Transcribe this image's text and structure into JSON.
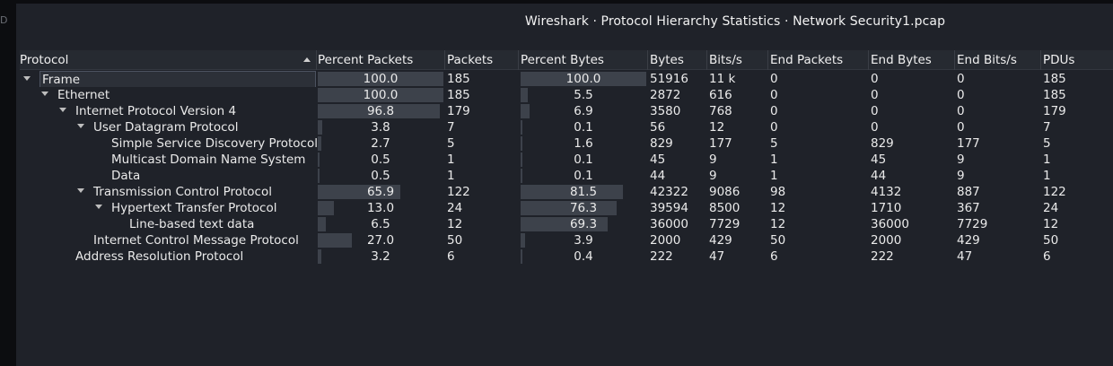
{
  "window": {
    "title": "Wireshark · Protocol Hierarchy Statistics · Network Security1.pcap",
    "desktop_letter": "D"
  },
  "columns": [
    "Protocol",
    "Percent Packets",
    "Packets",
    "Percent Bytes",
    "Bytes",
    "Bits/s",
    "End Packets",
    "End Bytes",
    "End Bits/s",
    "PDUs"
  ],
  "rows": [
    {
      "protocol": "Frame",
      "level": 0,
      "expandable": true,
      "selected": true,
      "percent_packets": "100.0",
      "pp_value": 100.0,
      "packets": "185",
      "percent_bytes": "100.0",
      "pb_value": 100.0,
      "bytes": "51916",
      "bits_s": "11 k",
      "end_packets": "0",
      "end_bytes": "0",
      "end_bits_s": "0",
      "pdus": "185"
    },
    {
      "protocol": "Ethernet",
      "level": 1,
      "expandable": true,
      "selected": false,
      "percent_packets": "100.0",
      "pp_value": 100.0,
      "packets": "185",
      "percent_bytes": "5.5",
      "pb_value": 5.5,
      "bytes": "2872",
      "bits_s": "616",
      "end_packets": "0",
      "end_bytes": "0",
      "end_bits_s": "0",
      "pdus": "185"
    },
    {
      "protocol": "Internet Protocol Version 4",
      "level": 2,
      "expandable": true,
      "selected": false,
      "percent_packets": "96.8",
      "pp_value": 96.8,
      "packets": "179",
      "percent_bytes": "6.9",
      "pb_value": 6.9,
      "bytes": "3580",
      "bits_s": "768",
      "end_packets": "0",
      "end_bytes": "0",
      "end_bits_s": "0",
      "pdus": "179"
    },
    {
      "protocol": "User Datagram Protocol",
      "level": 3,
      "expandable": true,
      "selected": false,
      "percent_packets": "3.8",
      "pp_value": 3.8,
      "packets": "7",
      "percent_bytes": "0.1",
      "pb_value": 0.1,
      "bytes": "56",
      "bits_s": "12",
      "end_packets": "0",
      "end_bytes": "0",
      "end_bits_s": "0",
      "pdus": "7"
    },
    {
      "protocol": "Simple Service Discovery Protocol",
      "level": 4,
      "expandable": false,
      "selected": false,
      "percent_packets": "2.7",
      "pp_value": 2.7,
      "packets": "5",
      "percent_bytes": "1.6",
      "pb_value": 1.6,
      "bytes": "829",
      "bits_s": "177",
      "end_packets": "5",
      "end_bytes": "829",
      "end_bits_s": "177",
      "pdus": "5"
    },
    {
      "protocol": "Multicast Domain Name System",
      "level": 4,
      "expandable": false,
      "selected": false,
      "percent_packets": "0.5",
      "pp_value": 0.5,
      "packets": "1",
      "percent_bytes": "0.1",
      "pb_value": 0.1,
      "bytes": "45",
      "bits_s": "9",
      "end_packets": "1",
      "end_bytes": "45",
      "end_bits_s": "9",
      "pdus": "1"
    },
    {
      "protocol": "Data",
      "level": 4,
      "expandable": false,
      "selected": false,
      "percent_packets": "0.5",
      "pp_value": 0.5,
      "packets": "1",
      "percent_bytes": "0.1",
      "pb_value": 0.1,
      "bytes": "44",
      "bits_s": "9",
      "end_packets": "1",
      "end_bytes": "44",
      "end_bits_s": "9",
      "pdus": "1"
    },
    {
      "protocol": "Transmission Control Protocol",
      "level": 3,
      "expandable": true,
      "selected": false,
      "percent_packets": "65.9",
      "pp_value": 65.9,
      "packets": "122",
      "percent_bytes": "81.5",
      "pb_value": 81.5,
      "bytes": "42322",
      "bits_s": "9086",
      "end_packets": "98",
      "end_bytes": "4132",
      "end_bits_s": "887",
      "pdus": "122"
    },
    {
      "protocol": "Hypertext Transfer Protocol",
      "level": 4,
      "expandable": true,
      "selected": false,
      "percent_packets": "13.0",
      "pp_value": 13.0,
      "packets": "24",
      "percent_bytes": "76.3",
      "pb_value": 76.3,
      "bytes": "39594",
      "bits_s": "8500",
      "end_packets": "12",
      "end_bytes": "1710",
      "end_bits_s": "367",
      "pdus": "24"
    },
    {
      "protocol": "Line-based text data",
      "level": 5,
      "expandable": false,
      "selected": false,
      "percent_packets": "6.5",
      "pp_value": 6.5,
      "packets": "12",
      "percent_bytes": "69.3",
      "pb_value": 69.3,
      "bytes": "36000",
      "bits_s": "7729",
      "end_packets": "12",
      "end_bytes": "36000",
      "end_bits_s": "7729",
      "pdus": "12"
    },
    {
      "protocol": "Internet Control Message Protocol",
      "level": 3,
      "expandable": false,
      "selected": false,
      "percent_packets": "27.0",
      "pp_value": 27.0,
      "packets": "50",
      "percent_bytes": "3.9",
      "pb_value": 3.9,
      "bytes": "2000",
      "bits_s": "429",
      "end_packets": "50",
      "end_bytes": "2000",
      "end_bits_s": "429",
      "pdus": "50"
    },
    {
      "protocol": "Address Resolution Protocol",
      "level": 2,
      "expandable": false,
      "selected": false,
      "percent_packets": "3.2",
      "pp_value": 3.2,
      "packets": "6",
      "percent_bytes": "0.4",
      "pb_value": 0.4,
      "bytes": "222",
      "bits_s": "47",
      "end_packets": "6",
      "end_bytes": "222",
      "end_bits_s": "47",
      "pdus": "6"
    }
  ]
}
